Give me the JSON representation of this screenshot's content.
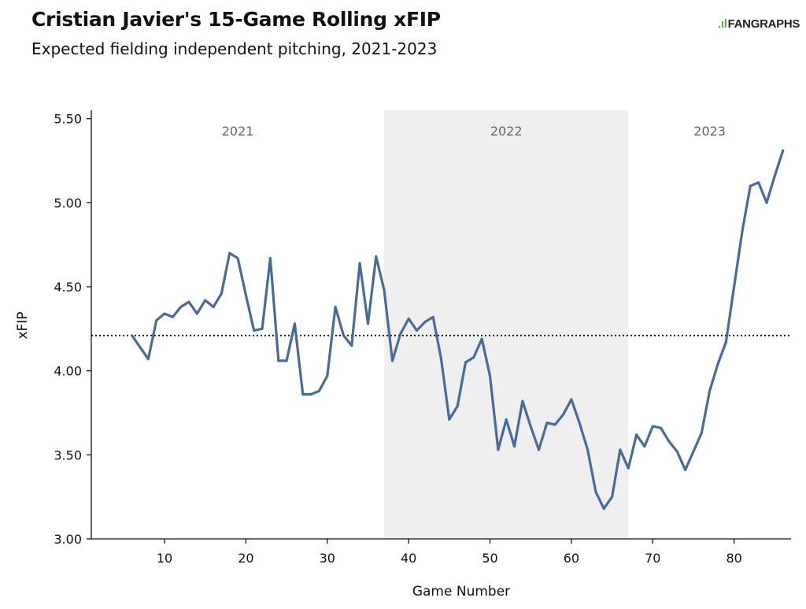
{
  "header": {
    "title": "Cristian Javier's 15-Game Rolling xFIP",
    "subtitle": "Expected fielding independent pitching, 2021-2023",
    "logo_text": "FANGRAPHS",
    "logo_icon": "fangraphs-logo-icon"
  },
  "colors": {
    "line": "#4a6b9a",
    "band": "#efefef",
    "axis": "#111111",
    "reference_line": "#111111"
  },
  "chart_data": {
    "type": "line",
    "title": "Cristian Javier's 15-Game Rolling xFIP",
    "subtitle": "Expected fielding independent pitching, 2021-2023",
    "xlabel": "Game Number",
    "ylabel": "xFIP",
    "xlim": [
      1,
      87
    ],
    "ylim": [
      3.0,
      5.55
    ],
    "x_ticks": [
      10,
      20,
      30,
      40,
      50,
      60,
      70,
      80
    ],
    "y_ticks": [
      3.0,
      3.5,
      4.0,
      4.5,
      5.0,
      5.5
    ],
    "y_tick_labels": [
      "3.00",
      "3.50",
      "4.00",
      "4.50",
      "5.00",
      "5.50"
    ],
    "grid": false,
    "reference_line": {
      "y": 4.21,
      "style": "dotted"
    },
    "season_bands": [
      {
        "label": "2021",
        "start": 1,
        "end": 37,
        "shaded": false
      },
      {
        "label": "2022",
        "start": 37,
        "end": 67,
        "shaded": true
      },
      {
        "label": "2023",
        "start": 67,
        "end": 87,
        "shaded": false
      }
    ],
    "series": [
      {
        "x": [
          6,
          7,
          8,
          9,
          10,
          11,
          12,
          13,
          14,
          15,
          16,
          17,
          18,
          19,
          20,
          21,
          22,
          23,
          24,
          25,
          26,
          27,
          28,
          29,
          30,
          31,
          32,
          33,
          34,
          35,
          36,
          37,
          38,
          39,
          40,
          41,
          42,
          43,
          44,
          45,
          46,
          47,
          48,
          49,
          50,
          51,
          52,
          53,
          54,
          55,
          56,
          57,
          58,
          59,
          60,
          61,
          62,
          63,
          64,
          65,
          66,
          67,
          68,
          69,
          70,
          71,
          72,
          73,
          74,
          75,
          76,
          77,
          78,
          79,
          80,
          81,
          82,
          83,
          84,
          85,
          86
        ],
        "values": [
          4.21,
          4.14,
          4.07,
          4.3,
          4.34,
          4.32,
          4.38,
          4.41,
          4.34,
          4.42,
          4.38,
          4.46,
          4.7,
          4.67,
          4.45,
          4.24,
          4.25,
          4.67,
          4.06,
          4.06,
          4.28,
          3.86,
          3.86,
          3.88,
          3.97,
          4.38,
          4.21,
          4.15,
          4.64,
          4.28,
          4.68,
          4.48,
          4.06,
          4.22,
          4.31,
          4.24,
          4.29,
          4.32,
          4.07,
          3.71,
          3.79,
          4.05,
          4.08,
          4.19,
          3.97,
          3.53,
          3.71,
          3.55,
          3.82,
          3.67,
          3.53,
          3.69,
          3.68,
          3.74,
          3.83,
          3.69,
          3.53,
          3.28,
          3.18,
          3.25,
          3.53,
          3.42,
          3.62,
          3.55,
          3.67,
          3.66,
          3.58,
          3.52,
          3.41,
          3.52,
          3.63,
          3.88,
          4.04,
          4.17,
          4.5,
          4.83,
          5.1,
          5.12,
          5.0,
          5.16,
          5.31
        ]
      }
    ]
  }
}
